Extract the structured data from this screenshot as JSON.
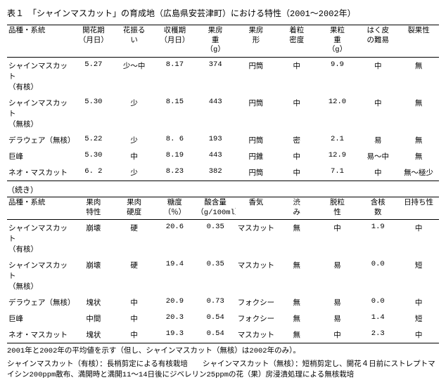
{
  "title": "表１　「シャインマスカット」の育成地（広島県安芸津町）における特性（2001～2002年）",
  "table1": {
    "headers": [
      "品種・系統",
      "開花期\n（月日）",
      "花振る\nい",
      "収穫期\n（月日）",
      "果房\n重\n（g）",
      "果房\n形",
      "着粒\n密度",
      "果粒\n重\n（g）",
      "はく皮\nの難易",
      "裂果性"
    ],
    "rows": [
      {
        "name": "シャインマスカット\n（有核）",
        "c": [
          "5.27",
          "少～中",
          "8.17",
          "374",
          "円筒",
          "中",
          "9.9",
          "中",
          "無"
        ]
      },
      {
        "name": "シャインマスカット\n（無核）",
        "c": [
          "5.30",
          "少",
          "8.15",
          "443",
          "円筒",
          "中",
          "12.0",
          "中",
          "無"
        ]
      },
      {
        "name": "デラウェア（無核）",
        "c": [
          "5.22",
          "少",
          "8. 6",
          "193",
          "円筒",
          "密",
          "2.1",
          "易",
          "無"
        ]
      },
      {
        "name": "巨峰",
        "c": [
          "5.30",
          "中",
          "8.19",
          "443",
          "円錐",
          "中",
          "12.9",
          "易～中",
          "無"
        ]
      },
      {
        "name": "ネオ・マスカット",
        "c": [
          "6. 2",
          "少",
          "8.23",
          "382",
          "円筒",
          "中",
          "7.1",
          "中",
          "無～極少"
        ]
      }
    ]
  },
  "cont_label": "（続き）",
  "table2": {
    "headers": [
      "品種・系統",
      "果肉\n特性",
      "果肉\n硬度",
      "糖度\n（％）",
      "酸含量\n（g/100ml）",
      "香気",
      "渋\nみ",
      "脱粒\n性",
      "含核\n数",
      "日持ち性"
    ],
    "rows": [
      {
        "name": "シャインマスカット\n（有核）",
        "c": [
          "崩壊",
          "硬",
          "20.6",
          "0.35",
          "マスカット",
          "無",
          "中",
          "1.9",
          "中"
        ]
      },
      {
        "name": "シャインマスカット\n（無核）",
        "c": [
          "崩壊",
          "硬",
          "19.4",
          "0.35",
          "マスカット",
          "無",
          "易",
          "0.0",
          "短"
        ]
      },
      {
        "name": "デラウェア（無核）",
        "c": [
          "塊状",
          "中",
          "20.9",
          "0.73",
          "フォクシー",
          "無",
          "易",
          "0.0",
          "中"
        ]
      },
      {
        "name": "巨峰",
        "c": [
          "中間",
          "中",
          "20.3",
          "0.54",
          "フォクシー",
          "無",
          "易",
          "1.4",
          "短"
        ]
      },
      {
        "name": "ネオ・マスカット",
        "c": [
          "塊状",
          "中",
          "19.3",
          "0.54",
          "マスカット",
          "無",
          "中",
          "2.3",
          "中"
        ]
      }
    ]
  },
  "footnotes": [
    "2001年と2002年の平均値を示す（但し、シャインマスカット（無核）は2002年のみ）。",
    "シャインマスカット（有核）：長梢剪定による有核栽培　　シャインマスカット（無核）：短梢剪定し、開花４日前にストレプトマイシン200ppm散布、満開時と満開11～14日後にジベレリン25ppmの花（果）房浸漬処理による無核栽培"
  ]
}
